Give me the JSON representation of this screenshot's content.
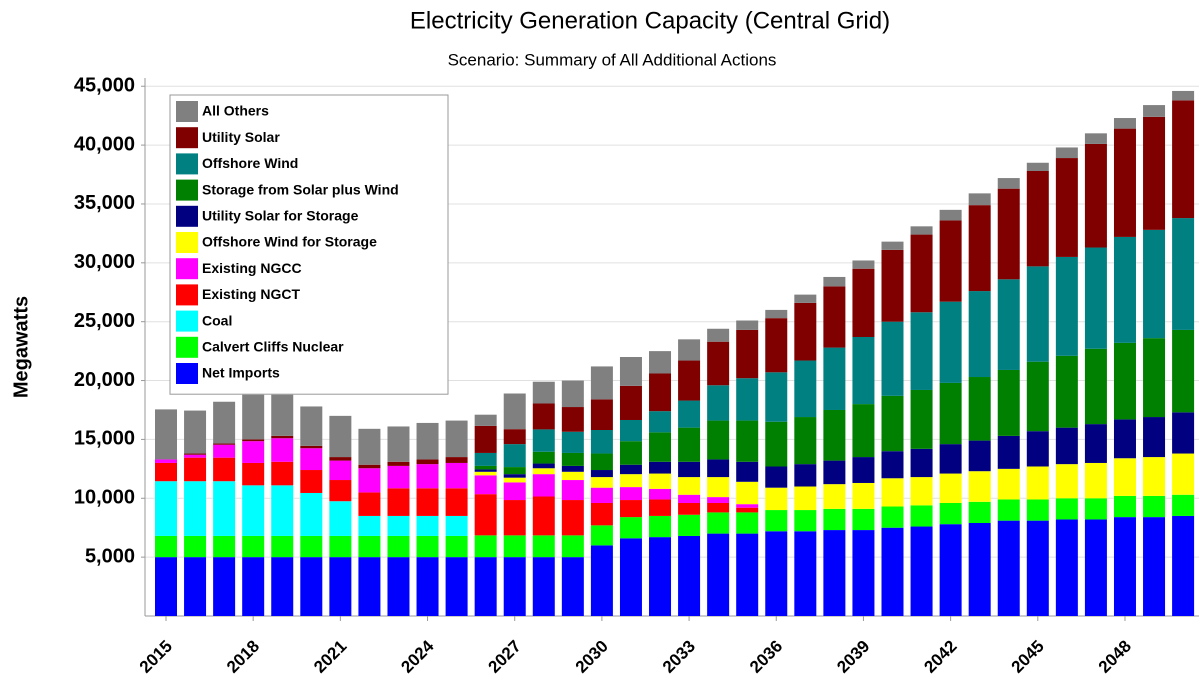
{
  "chart_data": {
    "type": "stacked_bar",
    "title": "Electricity Generation Capacity (Central Grid)",
    "subtitle": "Scenario: Summary of All Additional Actions",
    "y_label": "Megawatts",
    "categories": [
      "2015",
      null,
      null,
      "2018",
      null,
      null,
      "2021",
      null,
      null,
      "2024",
      null,
      null,
      "2027",
      null,
      null,
      "2030",
      null,
      null,
      "2033",
      null,
      null,
      "2036",
      null,
      null,
      "2039",
      null,
      null,
      "2042",
      null,
      null,
      "2045",
      null,
      null,
      "2048",
      null,
      null
    ],
    "ylim": [
      0,
      45700
    ],
    "yticks": [
      {
        "value": 5000,
        "label": "5,000"
      },
      {
        "value": 10000,
        "label": "10,000"
      },
      {
        "value": 15000,
        "label": "15,000"
      },
      {
        "value": 20000,
        "label": "20,000"
      },
      {
        "value": 25000,
        "label": "25,000"
      },
      {
        "value": 30000,
        "label": "30,000"
      },
      {
        "value": 35000,
        "label": "35,000"
      },
      {
        "value": 40000,
        "label": "40,000"
      },
      {
        "value": 45000,
        "label": "45,000"
      }
    ],
    "grid": true,
    "legend": "upper left",
    "series": [
      {
        "name": "Net Imports",
        "color": "#0000ff",
        "values": [
          5000,
          5000,
          5000,
          5000,
          5000,
          5000,
          5000,
          5000,
          5000,
          5000,
          5000,
          5000,
          5000,
          5000,
          5000,
          6000,
          6600,
          6700,
          6800,
          7000,
          7000,
          7200,
          7200,
          7300,
          7300,
          7500,
          7600,
          7800,
          7900,
          8100,
          8100,
          8200,
          8200,
          8400,
          8400,
          8500
        ]
      },
      {
        "name": "Calvert Cliffs Nuclear",
        "color": "#00ff00",
        "values": [
          1800,
          1800,
          1800,
          1800,
          1800,
          1800,
          1800,
          1800,
          1800,
          1800,
          1800,
          1850,
          1850,
          1850,
          1850,
          1700,
          1800,
          1800,
          1800,
          1800,
          1800,
          1800,
          1800,
          1800,
          1800,
          1800,
          1800,
          1800,
          1800,
          1800,
          1800,
          1800,
          1800,
          1800,
          1800,
          1800
        ]
      },
      {
        "name": "Coal",
        "color": "#00ffff",
        "values": [
          4650,
          4650,
          4650,
          4300,
          4300,
          3650,
          2950,
          1700,
          1700,
          1700,
          1700,
          0,
          0,
          0,
          0,
          0,
          0,
          0,
          0,
          0,
          0,
          0,
          0,
          0,
          0,
          0,
          0,
          0,
          0,
          0,
          0,
          0,
          0,
          0,
          0,
          0
        ]
      },
      {
        "name": "Existing NGCT",
        "color": "#ff0000",
        "values": [
          1550,
          2000,
          2000,
          1900,
          2000,
          1950,
          1800,
          2000,
          2350,
          2350,
          2350,
          3500,
          3000,
          3300,
          3000,
          1900,
          1450,
          1400,
          1000,
          800,
          400,
          0,
          0,
          0,
          0,
          0,
          0,
          0,
          0,
          0,
          0,
          0,
          0,
          0,
          0,
          0
        ]
      },
      {
        "name": "Existing NGCC",
        "color": "#ff00ff",
        "values": [
          300,
          250,
          1100,
          1850,
          2000,
          1850,
          1650,
          2050,
          1900,
          2050,
          2150,
          1600,
          1500,
          1900,
          1700,
          1300,
          1100,
          900,
          700,
          500,
          300,
          0,
          0,
          0,
          0,
          0,
          0,
          0,
          0,
          0,
          0,
          0,
          0,
          0,
          0,
          0
        ]
      },
      {
        "name": "Offshore Wind for Storage",
        "color": "#ffff00",
        "values": [
          0,
          0,
          0,
          0,
          0,
          0,
          0,
          0,
          0,
          0,
          0,
          300,
          400,
          500,
          700,
          900,
          1100,
          1300,
          1500,
          1700,
          1900,
          1900,
          2000,
          2100,
          2200,
          2400,
          2400,
          2500,
          2600,
          2600,
          2800,
          2900,
          3000,
          3200,
          3300,
          3500
        ]
      },
      {
        "name": "Utility Solar for Storage",
        "color": "#000080",
        "values": [
          0,
          0,
          0,
          0,
          0,
          0,
          0,
          0,
          0,
          0,
          0,
          200,
          300,
          400,
          500,
          600,
          800,
          1000,
          1300,
          1500,
          1700,
          1800,
          1900,
          2000,
          2200,
          2300,
          2400,
          2500,
          2600,
          2800,
          3000,
          3100,
          3300,
          3300,
          3400,
          3500
        ]
      },
      {
        "name": "Storage from Solar plus Wind",
        "color": "#008000",
        "values": [
          0,
          0,
          0,
          0,
          0,
          0,
          0,
          0,
          0,
          0,
          0,
          300,
          600,
          1000,
          1100,
          1400,
          2000,
          2500,
          2900,
          3300,
          3500,
          3800,
          4000,
          4300,
          4500,
          4700,
          5000,
          5200,
          5400,
          5600,
          5900,
          6100,
          6400,
          6500,
          6700,
          7000
        ]
      },
      {
        "name": "Offshore Wind",
        "color": "#008080",
        "values": [
          0,
          0,
          0,
          0,
          0,
          0,
          0,
          0,
          0,
          0,
          0,
          1100,
          1950,
          1900,
          1800,
          2000,
          1800,
          1800,
          2300,
          3000,
          3600,
          4200,
          4800,
          5300,
          5700,
          6300,
          6600,
          6900,
          7300,
          7700,
          8100,
          8400,
          8600,
          9000,
          9200,
          9500
        ]
      },
      {
        "name": "Utility Solar",
        "color": "#800000",
        "values": [
          0,
          100,
          100,
          150,
          200,
          200,
          300,
          300,
          350,
          400,
          500,
          2300,
          1270,
          2200,
          2100,
          2600,
          2900,
          3200,
          3400,
          3700,
          4100,
          4600,
          4900,
          5200,
          5800,
          6100,
          6600,
          6900,
          7300,
          7700,
          8100,
          8400,
          8800,
          9200,
          9600,
          10000
        ]
      },
      {
        "name": "All Others",
        "color": "#808080",
        "values": [
          4250,
          3650,
          3550,
          3800,
          3500,
          3350,
          3500,
          3050,
          3000,
          3100,
          3100,
          950,
          3030,
          1850,
          2250,
          2800,
          2450,
          1900,
          1800,
          1100,
          800,
          700,
          700,
          800,
          700,
          700,
          700,
          900,
          1000,
          900,
          700,
          900,
          900,
          900,
          1000,
          800
        ]
      }
    ]
  }
}
